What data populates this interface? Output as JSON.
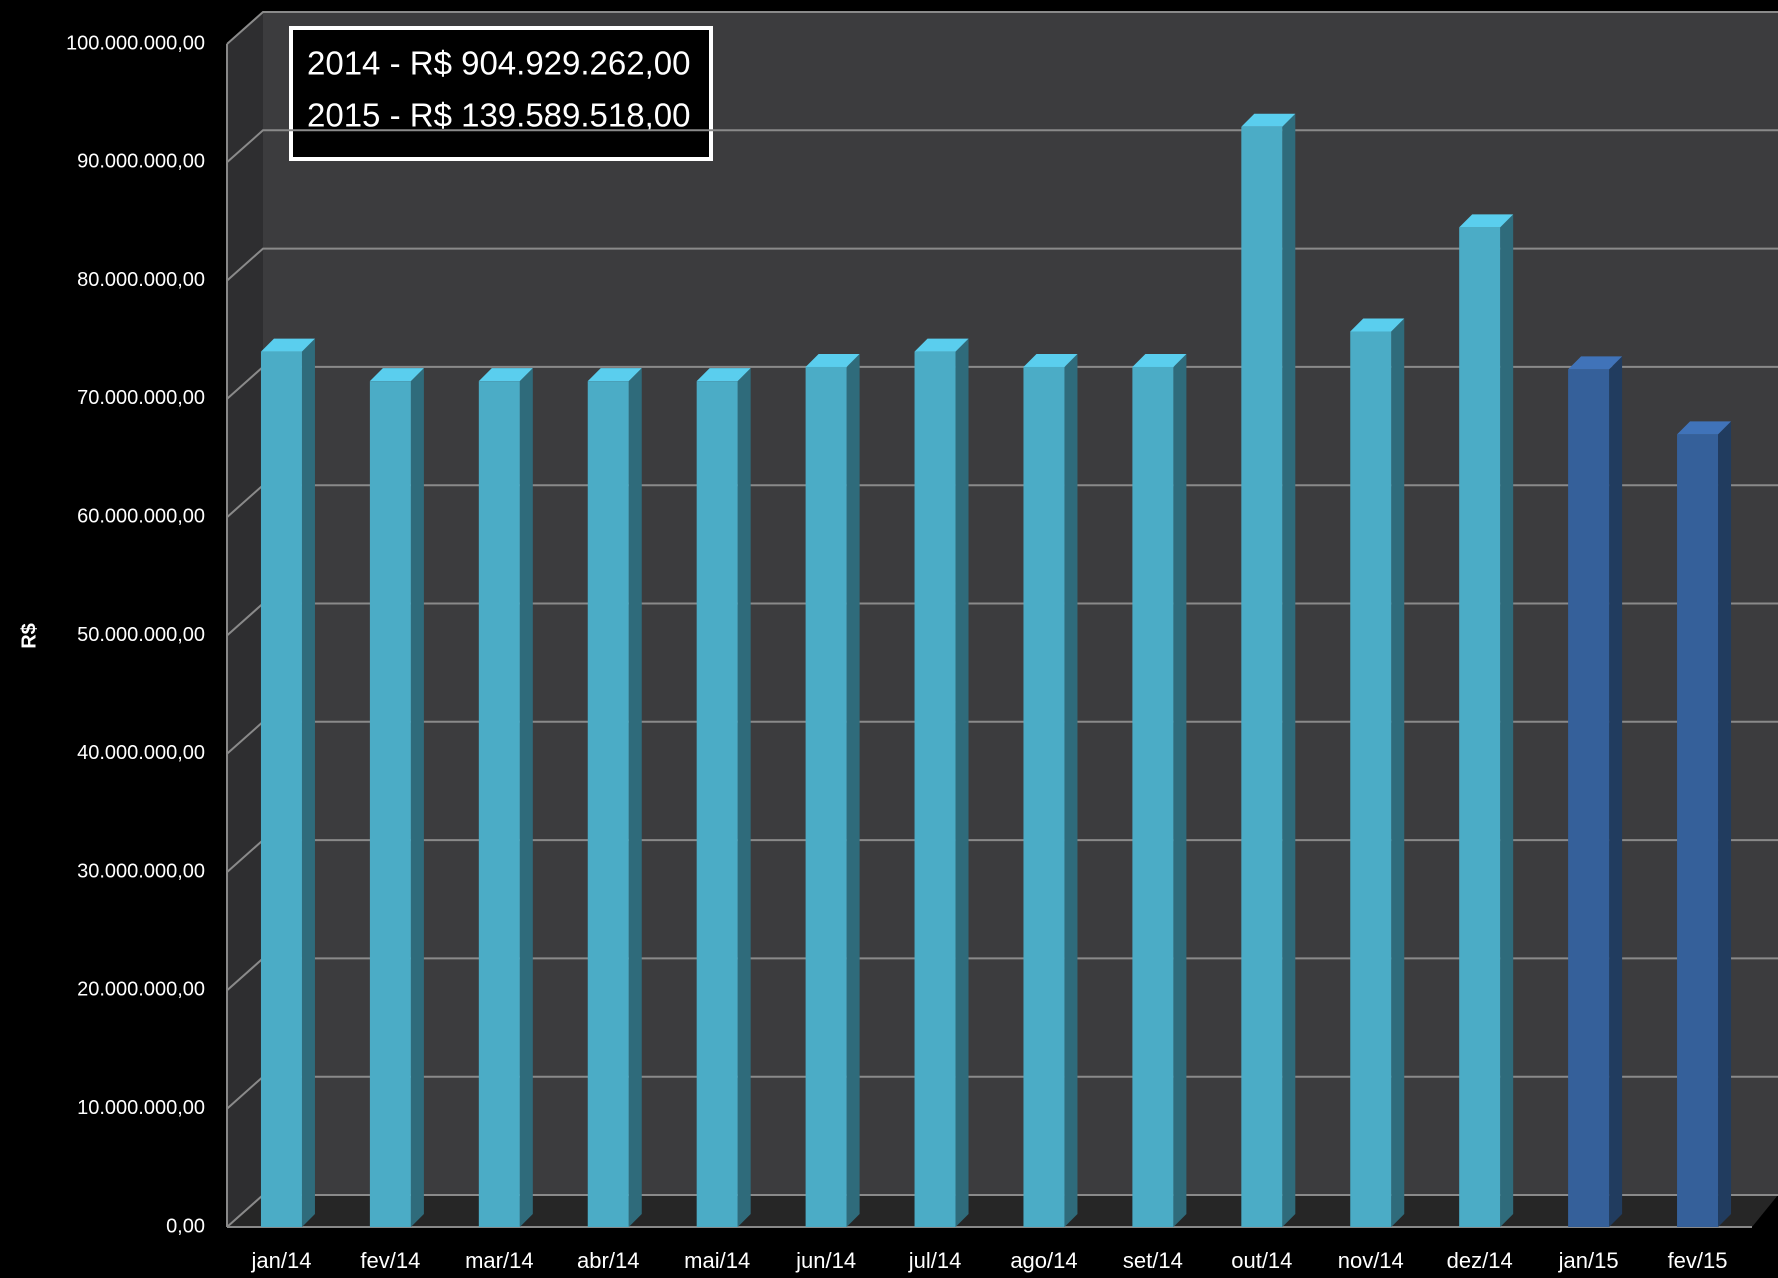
{
  "chart_data": {
    "type": "bar3d",
    "y_label": "R$",
    "annotations": [
      "2014 - R$ 904.929.262,00",
      "2015 - R$ 139.589.518,00"
    ],
    "categories": [
      "jan/14",
      "fev/14",
      "mar/14",
      "abr/14",
      "mai/14",
      "jun/14",
      "jul/14",
      "ago/14",
      "set/14",
      "out/14",
      "nov/14",
      "dez/14",
      "jan/15",
      "fev/15"
    ],
    "values": [
      74000000,
      71500000,
      71500000,
      71500000,
      71500000,
      72700000,
      74000000,
      72700000,
      72700000,
      93000000,
      75700000,
      84500000,
      72500000,
      67000000
    ],
    "colors": [
      "#4bacc6",
      "#4bacc6",
      "#4bacc6",
      "#4bacc6",
      "#4bacc6",
      "#4bacc6",
      "#4bacc6",
      "#4bacc6",
      "#4bacc6",
      "#4bacc6",
      "#4bacc6",
      "#4bacc6",
      "#35609a",
      "#35609a"
    ],
    "ylim": [
      0,
      100000000
    ],
    "yticks": [
      {
        "value": 0,
        "label": "0,00"
      },
      {
        "value": 10000000,
        "label": "10.000.000,00"
      },
      {
        "value": 20000000,
        "label": "20.000.000,00"
      },
      {
        "value": 30000000,
        "label": "30.000.000,00"
      },
      {
        "value": 40000000,
        "label": "40.000.000,00"
      },
      {
        "value": 50000000,
        "label": "50.000.000,00"
      },
      {
        "value": 60000000,
        "label": "60.000.000,00"
      },
      {
        "value": 70000000,
        "label": "70.000.000,00"
      },
      {
        "value": 80000000,
        "label": "80.000.000,00"
      },
      {
        "value": 90000000,
        "label": "90.000.000,00"
      },
      {
        "value": 100000000,
        "label": "100.000.000,00"
      }
    ],
    "grid": true
  }
}
